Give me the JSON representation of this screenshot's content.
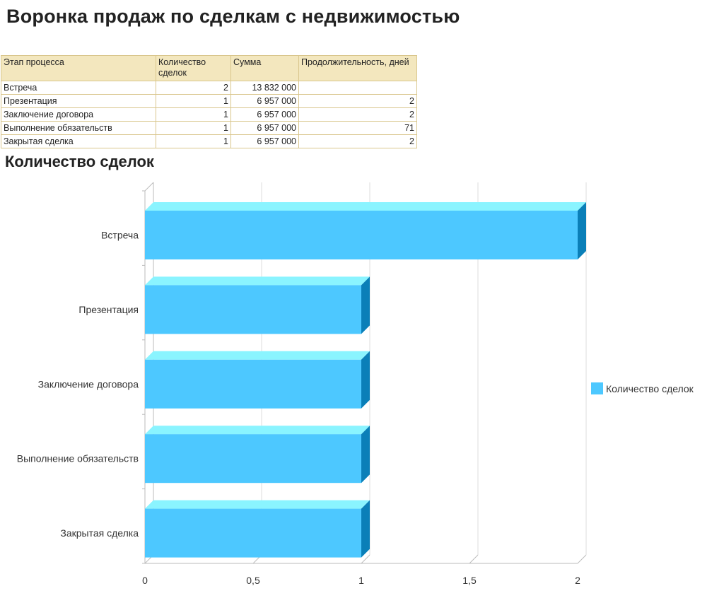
{
  "page": {
    "title": "Воронка продаж по сделкам с недвижимостью"
  },
  "table": {
    "headers": [
      "Этап процесса",
      "Количество сделок",
      "Сумма",
      "Продолжительность, дней"
    ],
    "rows": [
      {
        "stage": "Встреча",
        "count": "2",
        "sum": "13 832 000",
        "duration": ""
      },
      {
        "stage": "Презентация",
        "count": "1",
        "sum": "6 957 000",
        "duration": "2"
      },
      {
        "stage": "Заключение договора",
        "count": "1",
        "sum": "6 957 000",
        "duration": "2"
      },
      {
        "stage": "Выполнение обязательств",
        "count": "1",
        "sum": "6 957 000",
        "duration": "71"
      },
      {
        "stage": "Закрытая сделка",
        "count": "1",
        "sum": "6 957 000",
        "duration": "2"
      }
    ]
  },
  "chart_data": {
    "type": "bar",
    "orientation": "horizontal",
    "style": "3d",
    "title": "Количество сделок",
    "categories": [
      "Встреча",
      "Презентация",
      "Заключение договора",
      "Выполнение обязательств",
      "Закрытая сделка"
    ],
    "series": [
      {
        "name": "Количество сделок",
        "values": [
          2,
          1,
          1,
          1,
          1
        ]
      }
    ],
    "xlim": [
      0,
      2
    ],
    "xticks": [
      "0",
      "0,5",
      "1",
      "1,5",
      "2"
    ],
    "grid": true,
    "legend": "right",
    "colors": {
      "bar_front": "#4dc8ff",
      "bar_top": "#8af4ff",
      "bar_side": "#0a7fb8",
      "grid": "#dddddd",
      "axis": "#bbbbbb"
    }
  }
}
